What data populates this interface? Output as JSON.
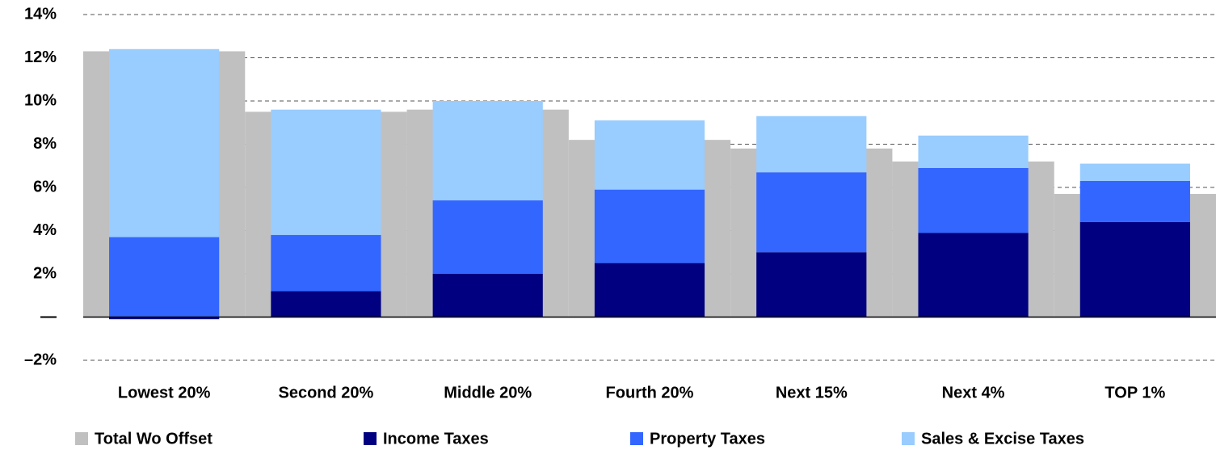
{
  "chart_data": {
    "type": "bar",
    "categories": [
      "Lowest 20%",
      "Second 20%",
      "Middle 20%",
      "Fourth 20%",
      "Next 15%",
      "Next 4%",
      "TOP 1%"
    ],
    "series": [
      {
        "name": "Total Wo Offset",
        "color": "#c0c0c0",
        "values": [
          12.3,
          9.5,
          9.6,
          8.2,
          7.8,
          7.2,
          5.7
        ]
      },
      {
        "name": "Income Taxes",
        "color": "#000080",
        "values": [
          -0.1,
          1.2,
          2.0,
          2.5,
          3.0,
          3.9,
          4.4
        ]
      },
      {
        "name": "Property Taxes",
        "color": "#3366ff",
        "values": [
          3.7,
          2.6,
          3.4,
          3.4,
          3.7,
          3.0,
          1.9
        ]
      },
      {
        "name": "Sales & Excise Taxes",
        "color": "#99ccff",
        "values": [
          8.7,
          5.8,
          4.6,
          3.2,
          2.6,
          1.5,
          0.8
        ]
      }
    ],
    "ylim": [
      -2,
      14
    ],
    "yticks": [
      {
        "value": -2,
        "label": "–2%"
      },
      {
        "value": 0,
        "label": "—"
      },
      {
        "value": 2,
        "label": "2%"
      },
      {
        "value": 4,
        "label": "4%"
      },
      {
        "value": 6,
        "label": "6%"
      },
      {
        "value": 8,
        "label": "8%"
      },
      {
        "value": 10,
        "label": "10%"
      },
      {
        "value": 12,
        "label": "12%"
      },
      {
        "value": 14,
        "label": "14%"
      }
    ],
    "grid": true,
    "legend": "bottom"
  }
}
